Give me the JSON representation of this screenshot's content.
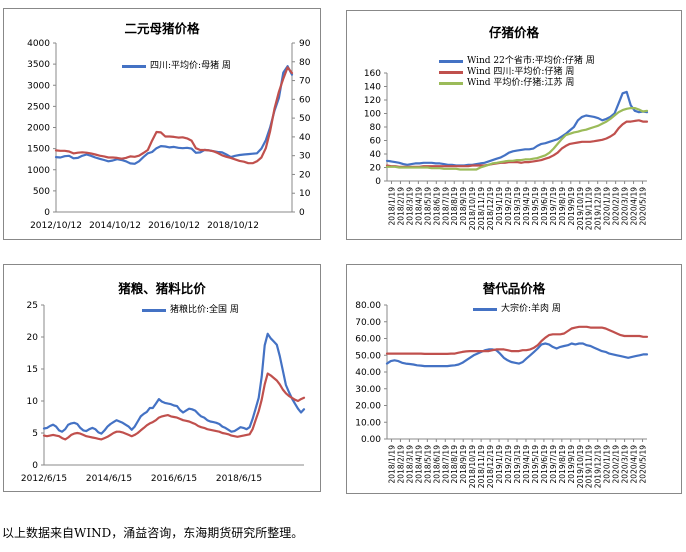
{
  "chart_data": [
    {
      "type": "line",
      "title": "二元母猪价格",
      "x_tick_labels": [
        "2012/10/12",
        "2014/10/12",
        "2016/10/12",
        "2018/10/12"
      ],
      "y_left": {
        "ylim": [
          0,
          4000
        ],
        "ticks": [
          "0",
          "500",
          "1000",
          "1500",
          "2000",
          "2500",
          "3000",
          "3500",
          "4000"
        ]
      },
      "y_right": {
        "ylim": [
          0,
          90
        ],
        "ticks": [
          "0",
          "10",
          "20",
          "30",
          "40",
          "50",
          "60",
          "70",
          "80",
          "90"
        ]
      },
      "legend": "top-center",
      "series": [
        {
          "name": "四川:平均价:母猪 周",
          "color": "#4472C4",
          "axis": "left",
          "values": [
            1300,
            1290,
            1320,
            1330,
            1270,
            1280,
            1330,
            1360,
            1330,
            1290,
            1260,
            1230,
            1200,
            1220,
            1250,
            1230,
            1200,
            1150,
            1140,
            1200,
            1300,
            1390,
            1420,
            1510,
            1560,
            1550,
            1530,
            1540,
            1520,
            1510,
            1520,
            1500,
            1400,
            1410,
            1470,
            1460,
            1440,
            1420,
            1410,
            1360,
            1300,
            1330,
            1350,
            1360,
            1370,
            1380,
            1390,
            1500,
            1700,
            2000,
            2400,
            2700,
            3300,
            3450,
            3250
          ]
        },
        {
          "name": "",
          "color": "#C0504D",
          "axis": "right",
          "values": [
            32.8,
            32.6,
            32.6,
            32.2,
            31.2,
            31.6,
            31.8,
            31.6,
            31.2,
            30.6,
            30,
            29.6,
            29,
            29,
            28.8,
            28.4,
            28.8,
            29.6,
            29.4,
            30,
            31.4,
            33,
            38,
            42.6,
            42.4,
            40.2,
            40.2,
            40,
            39.6,
            39.8,
            39.2,
            38,
            34,
            33,
            33,
            32.8,
            32.4,
            31.4,
            30.2,
            29.4,
            28.8,
            28,
            27.2,
            26.8,
            26,
            26,
            27,
            29,
            34,
            43,
            55,
            64,
            71,
            77,
            74
          ]
        }
      ]
    },
    {
      "type": "line",
      "title": "仔猪价格",
      "x_tick_labels": [
        "2018/1/19",
        "2018/2/19",
        "2018/3/19",
        "2018/4/19",
        "2018/5/19",
        "2018/6/19",
        "2018/7/19",
        "2018/8/19",
        "2018/9/19",
        "2018/10/19",
        "2018/11/19",
        "2018/12/19",
        "2019/1/19",
        "2019/2/19",
        "2019/3/19",
        "2019/4/19",
        "2019/5/19",
        "2019/6/19",
        "2019/7/19",
        "2019/8/19",
        "2019/9/19",
        "2019/10/19",
        "2019/11/19",
        "2019/12/19",
        "2020/1/19",
        "2020/2/19",
        "2020/3/19",
        "2020/4/19",
        "2020/5/19"
      ],
      "ylim": [
        0,
        160
      ],
      "y_ticks": [
        "0",
        "20",
        "40",
        "60",
        "80",
        "100",
        "120",
        "140",
        "160"
      ],
      "legend": "top",
      "series": [
        {
          "name": "Wind 22个省市:平均价:仔猪 周",
          "color": "#4472C4",
          "values": [
            30,
            29,
            28,
            27,
            25,
            24,
            25,
            26,
            26,
            27,
            27,
            27,
            26,
            26,
            25,
            24,
            24,
            23,
            23,
            23,
            24,
            24,
            25,
            26,
            27,
            29,
            31,
            33,
            35,
            38,
            42,
            44,
            45,
            46,
            47,
            47,
            48,
            52,
            55,
            56,
            58,
            60,
            62,
            66,
            70,
            75,
            80,
            90,
            95,
            97,
            96,
            95,
            93,
            90,
            92,
            95,
            100,
            115,
            130,
            132,
            112,
            104,
            102,
            103,
            102
          ]
        },
        {
          "name": "Wind 四川:平均价:仔猪 周",
          "color": "#C0504D",
          "values": [
            23,
            22,
            22,
            21,
            21,
            21,
            21,
            21,
            21,
            22,
            22,
            22,
            22,
            22,
            22,
            22,
            22,
            22,
            22,
            22,
            22,
            23,
            23,
            23,
            23,
            24,
            25,
            26,
            27,
            27,
            28,
            28,
            28,
            27,
            28,
            28,
            29,
            30,
            31,
            33,
            35,
            38,
            42,
            48,
            52,
            55,
            56,
            57,
            58,
            58,
            58,
            59,
            60,
            61,
            63,
            66,
            70,
            78,
            84,
            88,
            88,
            89,
            90,
            88,
            88
          ]
        },
        {
          "name": "Wind 平均价:仔猪:江苏 周",
          "color": "#9BBB59",
          "values": [
            21,
            21,
            21,
            20,
            20,
            20,
            20,
            20,
            20,
            20,
            20,
            19,
            19,
            19,
            18,
            18,
            18,
            18,
            17,
            17,
            17,
            17,
            17,
            20,
            22,
            24,
            26,
            27,
            28,
            29,
            30,
            30,
            31,
            31,
            32,
            32,
            33,
            34,
            36,
            38,
            42,
            48,
            55,
            62,
            68,
            70,
            72,
            73,
            75,
            76,
            78,
            80,
            82,
            85,
            88,
            92,
            97,
            102,
            105,
            107,
            108,
            108,
            106,
            103,
            104
          ]
        }
      ]
    },
    {
      "type": "line",
      "title": "猪粮、猪料比价",
      "x_tick_labels": [
        "2012/6/15",
        "2014/6/15",
        "2016/6/15",
        "2018/6/15"
      ],
      "ylim": [
        0,
        25
      ],
      "y_ticks": [
        "0",
        "5",
        "10",
        "15",
        "20",
        "25"
      ],
      "legend": "top-center",
      "series": [
        {
          "name": "猪粮比价:全国 周",
          "color": "#4472C4",
          "values": [
            5.7,
            5.8,
            6.1,
            6.3,
            6.0,
            5.4,
            5.2,
            5.6,
            6.3,
            6.5,
            6.6,
            6.4,
            5.8,
            5.4,
            5.3,
            5.6,
            5.8,
            5.6,
            5.1,
            4.9,
            5.4,
            6.0,
            6.4,
            6.7,
            7.0,
            6.8,
            6.6,
            6.3,
            6.0,
            5.5,
            6.0,
            6.8,
            7.6,
            8.0,
            8.3,
            8.9,
            8.9,
            9.6,
            10.3,
            9.9,
            9.7,
            9.6,
            9.5,
            9.3,
            9.2,
            8.6,
            8.2,
            8.5,
            8.8,
            8.7,
            8.5,
            8.0,
            7.6,
            7.4,
            7.0,
            6.8,
            6.7,
            6.6,
            6.4,
            6.0,
            5.8,
            5.5,
            5.2,
            5.3,
            5.6,
            5.9,
            5.8,
            5.6,
            5.9,
            7.2,
            8.8,
            10.5,
            13.8,
            18.7,
            20.5,
            19.8,
            19.3,
            18.8,
            17.0,
            14.8,
            12.5,
            11.4,
            10.4,
            9.6,
            8.8,
            8.2,
            8.7
          ]
        },
        {
          "name": "",
          "color": "#C0504D",
          "values": [
            4.6,
            4.5,
            4.6,
            4.7,
            4.6,
            4.5,
            4.2,
            4.0,
            4.3,
            4.7,
            4.9,
            5.0,
            4.9,
            4.7,
            4.5,
            4.4,
            4.3,
            4.2,
            4.1,
            4.0,
            4.2,
            4.4,
            4.7,
            5.0,
            5.2,
            5.2,
            5.1,
            4.9,
            4.7,
            4.5,
            4.7,
            5.0,
            5.4,
            5.8,
            6.2,
            6.5,
            6.7,
            7.0,
            7.4,
            7.6,
            7.7,
            7.8,
            7.6,
            7.5,
            7.4,
            7.2,
            7.0,
            6.9,
            6.8,
            6.6,
            6.4,
            6.1,
            5.9,
            5.8,
            5.6,
            5.5,
            5.4,
            5.3,
            5.2,
            5.0,
            4.9,
            4.8,
            4.6,
            4.5,
            4.4,
            4.5,
            4.6,
            4.7,
            4.8,
            5.6,
            7.0,
            8.4,
            10.2,
            12.6,
            14.3,
            14.0,
            13.6,
            13.2,
            12.6,
            11.8,
            11.2,
            10.8,
            10.5,
            10.2,
            10.0,
            10.3,
            10.5
          ]
        }
      ]
    },
    {
      "type": "line",
      "title": "替代品价格",
      "x_tick_labels": [
        "2018/1/19",
        "2018/2/19",
        "2018/3/19",
        "2018/4/19",
        "2018/5/19",
        "2018/6/19",
        "2018/7/19",
        "2018/8/19",
        "2018/9/19",
        "2018/10/19",
        "2018/11/19",
        "2018/12/19",
        "2019/1/19",
        "2019/2/19",
        "2019/3/19",
        "2019/4/19",
        "2019/5/19",
        "2019/6/19",
        "2019/7/19",
        "2019/8/19",
        "2019/9/19",
        "2019/10/19",
        "2019/11/19",
        "2019/12/19",
        "2020/1/19",
        "2020/2/19",
        "2020/3/19",
        "2020/4/19",
        "2020/5/19"
      ],
      "ylim": [
        0,
        80
      ],
      "y_ticks": [
        "0.00",
        "10.00",
        "20.00",
        "30.00",
        "40.00",
        "50.00",
        "60.00",
        "70.00",
        "80.00"
      ],
      "legend": "top-center",
      "series": [
        {
          "name": "大宗价:羊肉 周",
          "color": "#4472C4",
          "values": [
            45.0,
            46.5,
            47.0,
            46.5,
            45.5,
            45.0,
            44.8,
            44.5,
            44.0,
            43.8,
            43.5,
            43.5,
            43.5,
            43.5,
            43.5,
            43.5,
            43.5,
            43.8,
            44.0,
            44.5,
            45.5,
            47.0,
            48.5,
            50.0,
            51.0,
            52.0,
            53.0,
            53.5,
            53.5,
            53.0,
            51.0,
            48.5,
            47.0,
            46.0,
            45.5,
            45.0,
            46.0,
            48.0,
            50.0,
            52.0,
            54.0,
            56.5,
            57.0,
            56.5,
            55.0,
            54.0,
            55.0,
            55.5,
            56.0,
            57.0,
            56.5,
            57.0,
            57.0,
            56.0,
            55.5,
            54.5,
            53.5,
            52.5,
            52.0,
            51.0,
            50.5,
            50.0,
            49.5,
            49.0,
            48.5,
            49.0,
            49.5,
            50.0,
            50.5,
            50.5
          ]
        },
        {
          "name": "",
          "color": "#C0504D",
          "values": [
            51.0,
            51.0,
            51.0,
            51.0,
            51.0,
            51.0,
            51.0,
            51.0,
            51.0,
            51.0,
            50.8,
            50.8,
            50.8,
            50.8,
            50.8,
            50.8,
            50.8,
            51.0,
            51.0,
            51.5,
            52.0,
            52.3,
            52.5,
            52.5,
            52.5,
            52.5,
            52.5,
            52.5,
            53.0,
            53.5,
            53.5,
            53.5,
            53.0,
            52.5,
            52.5,
            52.5,
            53.0,
            53.0,
            53.5,
            54.5,
            56.0,
            58.5,
            60.5,
            62.0,
            62.5,
            62.5,
            62.5,
            63.0,
            64.5,
            66.0,
            66.5,
            67.0,
            67.0,
            67.0,
            66.5,
            66.5,
            66.5,
            66.5,
            66.0,
            65.0,
            64.0,
            63.0,
            62.0,
            61.5,
            61.5,
            61.5,
            61.5,
            61.5,
            61.0,
            61.0
          ]
        }
      ]
    }
  ],
  "footer": "以上数据来自WIND，涌益咨询，东海期货研究所整理。"
}
